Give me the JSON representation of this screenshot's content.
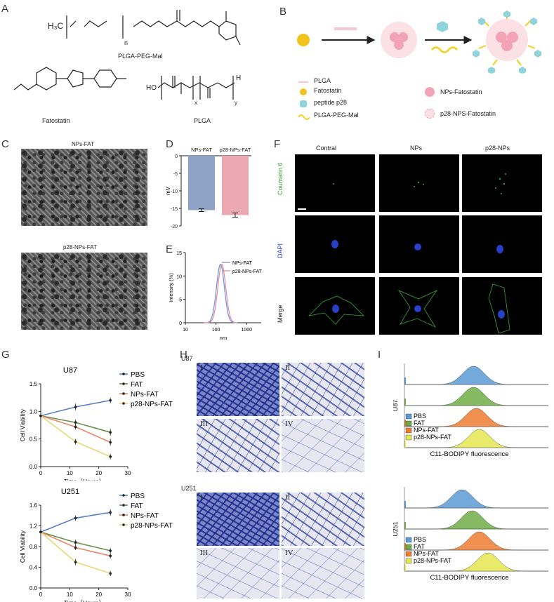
{
  "panels": {
    "A": "A",
    "B": "B",
    "C": "C",
    "D": "D",
    "E": "E",
    "F": "F",
    "G": "G",
    "H": "H",
    "I": "I"
  },
  "panel_a": {
    "mol1_formula_left": "H₃C",
    "mol1_sub": "n",
    "mol1_name": "PLGA-PEG-Mal",
    "mol2_name": "Fatostatin",
    "mol3_name": "PLGA",
    "mol3_prefix": "HO",
    "mol3_suffix": "H",
    "sub_x": "x",
    "sub_y": "y"
  },
  "panel_b": {
    "legend": [
      {
        "label": "PLGA",
        "symbol": "line",
        "color": "#f4c7d6"
      },
      {
        "label": "Fatostatin",
        "symbol": "dot",
        "color": "#f2c31a"
      },
      {
        "label": "peptide p28",
        "symbol": "hex",
        "color": "#8fd3dc"
      },
      {
        "label": "PLGA-PEG-Mal",
        "symbol": "wave",
        "color": "#f2d020"
      },
      {
        "label": "NPs-Fatostatin",
        "symbol": "np",
        "color": "#f3a3b6"
      },
      {
        "label": "p28-NPS-Fatostatin",
        "symbol": "p28np",
        "color": "#f3a3b6"
      }
    ]
  },
  "panel_c": {
    "top_label": "NPs-FAT",
    "bottom_label": "p28-NPs-FAT"
  },
  "panel_f": {
    "columns": [
      "Contral",
      "NPs",
      "p28-NPs"
    ],
    "rows": [
      "Coumarin 6",
      "DAPI",
      "Merge"
    ],
    "row_colors": [
      "#3aa53a",
      "#2840c8",
      "#222222"
    ]
  },
  "panel_h": {
    "u87_label": "U87",
    "u251_label": "U251",
    "numerals": [
      "I",
      "II",
      "III",
      "IV"
    ]
  },
  "panel_i": {
    "cell_lines": [
      "U87",
      "U251"
    ],
    "legend": [
      "PBS",
      "FAT",
      "NPs-FAT",
      "p28-NPs-FAT"
    ],
    "xlabel": "C11-BODIPY  fluorescence",
    "colors": [
      "#5b9bd5",
      "#70ad47",
      "#ed7d31",
      "#e5e550"
    ]
  },
  "chart_data": [
    {
      "id": "D",
      "type": "bar",
      "categories": [
        "NPs-FAT",
        "p28-NPs-FAT"
      ],
      "values": [
        -15.5,
        -16.9
      ],
      "errors": [
        0.4,
        0.6
      ],
      "colors": [
        "#8fa3c6",
        "#eba8b0"
      ],
      "ylabel": "mV",
      "ylim": [
        -20,
        0
      ],
      "yticks": [
        0,
        -5,
        -10,
        -15,
        -20
      ]
    },
    {
      "id": "E",
      "type": "line",
      "xlabel": "nm",
      "ylabel": "Intensity (%)",
      "xscale": "log",
      "xlim": [
        10,
        3000
      ],
      "ylim": [
        0,
        15
      ],
      "xticks": [
        10,
        100,
        1000
      ],
      "yticks": [
        0,
        5,
        10,
        15
      ],
      "series": [
        {
          "name": "NPs-FAT",
          "color": "#6b8fd6",
          "peak": 140,
          "height": 12.5
        },
        {
          "name": "p28-NPs-FAT",
          "color": "#e48a9a",
          "peak": 155,
          "height": 12.5
        }
      ]
    },
    {
      "id": "G-U87",
      "type": "line",
      "title": "U87",
      "xlabel": "Time（Hours）",
      "ylabel": "Cell Viability",
      "xlim": [
        0,
        30
      ],
      "ylim": [
        0,
        1.5
      ],
      "xticks": [
        0,
        10,
        20,
        30
      ],
      "yticks": [
        0.0,
        0.5,
        1.0,
        1.5
      ],
      "x": [
        0,
        12,
        24
      ],
      "series": [
        {
          "name": "PBS",
          "color": "#5b7fc4",
          "values": [
            0.92,
            1.08,
            1.2
          ],
          "errors": [
            0.03,
            0.06,
            0.05
          ]
        },
        {
          "name": "FAT",
          "color": "#6b8f4a",
          "values": [
            0.92,
            0.8,
            0.62
          ],
          "errors": [
            0.03,
            0.05,
            0.06
          ]
        },
        {
          "name": "NPs-FAT",
          "color": "#e8866a",
          "values": [
            0.92,
            0.72,
            0.44
          ],
          "errors": [
            0.03,
            0.05,
            0.06
          ]
        },
        {
          "name": "p28-NPs-FAT",
          "color": "#e8d870",
          "values": [
            0.92,
            0.45,
            0.18
          ],
          "errors": [
            0.03,
            0.05,
            0.05
          ]
        }
      ]
    },
    {
      "id": "G-U251",
      "type": "line",
      "title": "U251",
      "xlabel": "Time（Hours）",
      "ylabel": "Cell Viability",
      "xlim": [
        0,
        30
      ],
      "ylim": [
        0,
        1.6
      ],
      "xticks": [
        0,
        10,
        20,
        30
      ],
      "yticks": [
        0.0,
        0.4,
        0.8,
        1.2,
        1.6
      ],
      "x": [
        0,
        12,
        24
      ],
      "series": [
        {
          "name": "PBS",
          "color": "#5b7fc4",
          "values": [
            1.08,
            1.35,
            1.46
          ],
          "errors": [
            0.03,
            0.05,
            0.06
          ]
        },
        {
          "name": "FAT",
          "color": "#6b8f4a",
          "values": [
            1.08,
            0.88,
            0.72
          ],
          "errors": [
            0.03,
            0.05,
            0.05
          ]
        },
        {
          "name": "NPs-FAT",
          "color": "#e8866a",
          "values": [
            1.08,
            0.78,
            0.62
          ],
          "errors": [
            0.03,
            0.05,
            0.05
          ]
        },
        {
          "name": "p28-NPs-FAT",
          "color": "#e8d870",
          "values": [
            1.08,
            0.5,
            0.28
          ],
          "errors": [
            0.03,
            0.06,
            0.05
          ]
        }
      ]
    }
  ]
}
